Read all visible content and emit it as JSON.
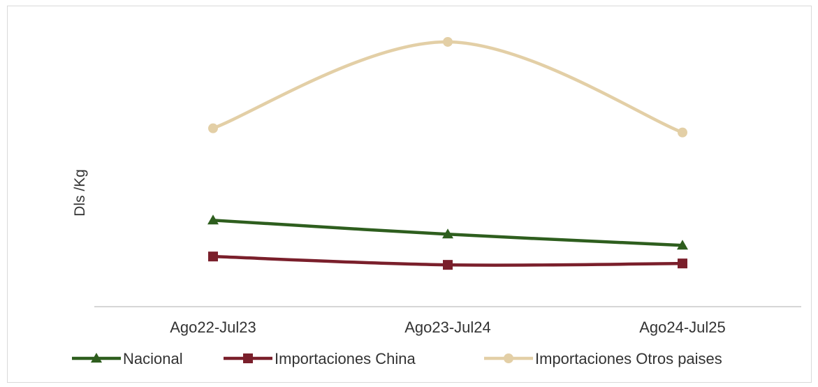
{
  "chart_data": {
    "type": "line",
    "title": "",
    "xlabel": "",
    "ylabel": "Dls /Kg",
    "categories": [
      "Ago22-Jul23",
      "Ago23-Jul24",
      "Ago24-Jul25"
    ],
    "ylim": [
      0,
      10
    ],
    "grid": false,
    "legend_position": "bottom",
    "series": [
      {
        "name": "Nacional",
        "values": [
          3.1,
          2.6,
          2.2
        ],
        "color": "#2e5e1e",
        "marker": "triangle"
      },
      {
        "name": "Importaciones China",
        "values": [
          1.8,
          1.5,
          1.55
        ],
        "color": "#7a1f2b",
        "marker": "square"
      },
      {
        "name": "Importaciones Otros paises",
        "values": [
          6.4,
          9.5,
          6.25
        ],
        "color": "#e3cfa6",
        "marker": "circle"
      }
    ]
  }
}
